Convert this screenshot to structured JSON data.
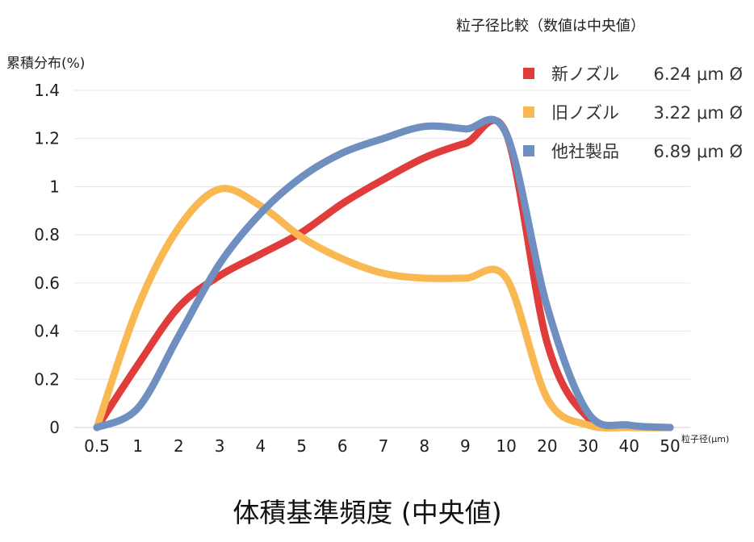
{
  "chart_data": {
    "type": "line",
    "title": "体積基準頻度 (中央値)",
    "subtitle": "粒子径比較（数値は中央値）",
    "ylabel": "累積分布(%)",
    "xlabel": "粒子径(μm)",
    "categories": [
      "0.5",
      "1",
      "2",
      "3",
      "4",
      "5",
      "6",
      "7",
      "8",
      "9",
      "10",
      "20",
      "30",
      "40",
      "50"
    ],
    "ylim": [
      0,
      1.4
    ],
    "yticks": [
      "0",
      "0.2",
      "0.4",
      "0.6",
      "0.8",
      "1",
      "1.2",
      "1.4"
    ],
    "grid": true,
    "legend_position": "top-right",
    "series": [
      {
        "name": "新ノズル",
        "median": "6.24 μm Ø",
        "color": "#e03c3c",
        "values": [
          0,
          0.26,
          0.5,
          0.63,
          0.72,
          0.81,
          0.93,
          1.03,
          1.12,
          1.18,
          1.22,
          0.35,
          0.04,
          0.005,
          0
        ]
      },
      {
        "name": "旧ノズル",
        "median": "3.22 μm Ø",
        "color": "#f9b851",
        "values": [
          0,
          0.5,
          0.83,
          0.99,
          0.92,
          0.79,
          0.7,
          0.64,
          0.62,
          0.62,
          0.62,
          0.12,
          0.01,
          0,
          0
        ]
      },
      {
        "name": "他社製品",
        "median": "6.89 μm Ø",
        "color": "#6f8fc1",
        "values": [
          0,
          0.08,
          0.38,
          0.68,
          0.89,
          1.04,
          1.14,
          1.2,
          1.25,
          1.24,
          1.22,
          0.5,
          0.06,
          0.01,
          0
        ]
      }
    ]
  }
}
